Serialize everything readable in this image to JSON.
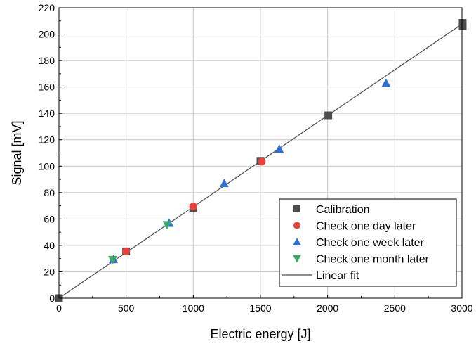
{
  "chart_data": {
    "type": "scatter",
    "xlabel": "Electric energy [J]",
    "ylabel": "Signal [mV]",
    "xlim": [
      0,
      3000
    ],
    "ylim": [
      0,
      220
    ],
    "x_ticks": [
      0,
      500,
      1000,
      1500,
      2000,
      2500,
      3000
    ],
    "y_ticks": [
      0,
      20,
      40,
      60,
      80,
      100,
      120,
      140,
      160,
      180,
      200,
      220
    ],
    "grid": true,
    "legend_position": "bottom-right",
    "series": [
      {
        "name": "Calibration",
        "marker": "square",
        "color": "#4d4d4d",
        "points": [
          [
            0,
            0
          ],
          [
            500,
            35.5
          ],
          [
            1000,
            68.5
          ],
          [
            1500,
            104
          ],
          [
            2005,
            138.5
          ],
          [
            3005,
            206
          ],
          [
            3005,
            208.5
          ]
        ]
      },
      {
        "name": "Check one day later",
        "marker": "circle",
        "color": "#e8403a",
        "points": [
          [
            500,
            35.5
          ],
          [
            1000,
            69.5
          ],
          [
            1510,
            103.5
          ]
        ]
      },
      {
        "name": "Check one week later",
        "marker": "triangle-up",
        "color": "#2f6fd6",
        "points": [
          [
            405,
            29.5
          ],
          [
            820,
            57
          ],
          [
            1230,
            87
          ],
          [
            1640,
            113
          ],
          [
            2435,
            163
          ]
        ]
      },
      {
        "name": "Check one month later",
        "marker": "triangle-down",
        "color": "#3ea86a",
        "points": [
          [
            400,
            29
          ],
          [
            805,
            55.5
          ]
        ]
      },
      {
        "name": "Linear fit",
        "marker": "line",
        "color": "#4d4d4d",
        "points": [
          [
            0,
            0
          ],
          [
            3000,
            207.6
          ]
        ]
      }
    ]
  }
}
